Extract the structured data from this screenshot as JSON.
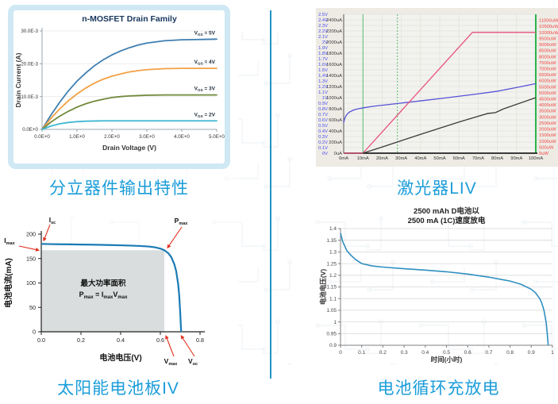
{
  "captions": {
    "mosfet": "分立器件输出特性",
    "liv": "激光器LIV",
    "solar": "太阳能电池板IV",
    "battery": "电池循环充放电"
  },
  "divider": {
    "color": "#2593c4"
  },
  "chart_data": [
    {
      "id": "mosfet",
      "type": "line",
      "title": "n-MOSFET Drain Family",
      "xlabel": "Drain Voltage (V)",
      "ylabel": "Drain Current (A)",
      "xlim": [
        0,
        5
      ],
      "ylim": [
        0,
        0.03
      ],
      "xtick_values": [
        0,
        1,
        2,
        3,
        4,
        5
      ],
      "xtick_labels": [
        "0.0E+0",
        "1.0E+0",
        "2.0E+0",
        "3.0E+0",
        "4.0E+0",
        "5.0E+0"
      ],
      "ytick_values": [
        0,
        0.01,
        0.02,
        0.03
      ],
      "ytick_labels": [
        "0.0E+0",
        "10.0E-3",
        "20.0E-3",
        "30.0E-3"
      ],
      "frame_color": "#cfe8f4",
      "grid": "horizontal",
      "series": [
        {
          "name": "VGS = 5V",
          "label_segs": [
            {
              "t": "V"
            },
            {
              "t": "GS",
              "sub": true
            },
            {
              "t": " = 5V"
            }
          ],
          "color": "#3f7eb0",
          "x": [
            0,
            0.25,
            0.5,
            0.75,
            1,
            1.25,
            1.5,
            1.75,
            2,
            2.25,
            2.5,
            2.75,
            3,
            3.5,
            4,
            4.5,
            5
          ],
          "y": [
            0,
            0.0043,
            0.0082,
            0.0117,
            0.0147,
            0.0172,
            0.0194,
            0.0212,
            0.0227,
            0.0239,
            0.0249,
            0.0257,
            0.0263,
            0.027,
            0.0273,
            0.0274,
            0.0275
          ]
        },
        {
          "name": "VGS = 4V",
          "label_segs": [
            {
              "t": "V"
            },
            {
              "t": "GS",
              "sub": true
            },
            {
              "t": " = 4V"
            }
          ],
          "color": "#f2a144",
          "x": [
            0,
            0.25,
            0.5,
            0.75,
            1,
            1.25,
            1.5,
            1.75,
            2,
            2.25,
            2.5,
            2.75,
            3,
            3.5,
            4,
            4.5,
            5
          ],
          "y": [
            0,
            0.0033,
            0.0062,
            0.0087,
            0.0108,
            0.0126,
            0.0141,
            0.0153,
            0.0162,
            0.0169,
            0.0175,
            0.0179,
            0.0182,
            0.0185,
            0.0186,
            0.0186,
            0.0186
          ]
        },
        {
          "name": "VGS = 3V",
          "label_segs": [
            {
              "t": "V"
            },
            {
              "t": "GS",
              "sub": true
            },
            {
              "t": " = 3V"
            }
          ],
          "color": "#71893b",
          "x": [
            0,
            0.25,
            0.5,
            0.75,
            1,
            1.25,
            1.5,
            1.75,
            2,
            2.25,
            2.5,
            2.75,
            3,
            3.5,
            4,
            4.5,
            5
          ],
          "y": [
            0,
            0.0022,
            0.004,
            0.0055,
            0.0068,
            0.0078,
            0.0086,
            0.0092,
            0.0097,
            0.01,
            0.0102,
            0.0103,
            0.0104,
            0.0105,
            0.0105,
            0.0105,
            0.0105
          ]
        },
        {
          "name": "VGS = 2V",
          "label_segs": [
            {
              "t": "V"
            },
            {
              "t": "GS",
              "sub": true
            },
            {
              "t": " = 2V"
            }
          ],
          "color": "#3fb8d3",
          "x": [
            0,
            0.25,
            0.5,
            0.75,
            1,
            1.25,
            1.5,
            1.75,
            2,
            2.5,
            3,
            3.5,
            4,
            4.5,
            5
          ],
          "y": [
            0,
            0.001,
            0.0017,
            0.0021,
            0.00235,
            0.0025,
            0.00255,
            0.0026,
            0.0026,
            0.0026,
            0.0026,
            0.0026,
            0.0026,
            0.0026,
            0.0026
          ]
        }
      ]
    },
    {
      "id": "liv",
      "type": "line",
      "bg": "#edebe4",
      "plot_bg": "#f2f2ee",
      "grid_color": "#dbdbd5",
      "xlim": [
        0,
        100
      ],
      "xtick_labels": [
        "0mA",
        "10mA",
        "20mA",
        "30mA",
        "40mA",
        "50mA",
        "60mA",
        "70mA",
        "80mA",
        "90mA",
        "100mA"
      ],
      "axes": {
        "voltage": {
          "color": "#4d4df2",
          "max": 2.5,
          "labels": [
            "2.5V",
            "2.4V",
            "2.3V",
            "2.2V",
            "2.1V",
            "2V",
            "1.9V",
            "1.8V",
            "1.7V",
            "1.6V",
            "1.5V",
            "1.4V",
            "1.3V",
            "1.2V",
            "1.1V",
            "1V",
            "0.9V",
            "0.8V",
            "0.7V",
            "0.6V",
            "0.5V",
            "0.4V",
            "0.3V",
            "0.2V",
            "0.1V",
            "0V"
          ],
          "values": [
            2.5,
            2.4,
            2.3,
            2.2,
            2.1,
            2.0,
            1.9,
            1.8,
            1.7,
            1.6,
            1.5,
            1.4,
            1.3,
            1.2,
            1.1,
            1.0,
            0.9,
            0.8,
            0.7,
            0.6,
            0.5,
            0.4,
            0.3,
            0.2,
            0.1,
            0
          ]
        },
        "current": {
          "color": "#3a3a3a",
          "max": 2500,
          "labels": [
            "2400uA",
            "2200uA",
            "2000uA",
            "1800uA",
            "1600uA",
            "1400uA",
            "1200uA",
            "1000uA",
            "800uA",
            "600uA",
            "400uA",
            "200uA",
            "0uA"
          ],
          "values": [
            2400,
            2200,
            2000,
            1800,
            1600,
            1400,
            1200,
            1000,
            800,
            600,
            400,
            200,
            0
          ]
        },
        "power": {
          "color": "#f24646",
          "max": 11500,
          "labels": [
            "11000uW",
            "10500uW",
            "10000uW",
            "9500uW",
            "9000uW",
            "8500uW",
            "8000uW",
            "7500uW",
            "7000uW",
            "6500uW",
            "6000uW",
            "5500uW",
            "5000uW",
            "4500uW",
            "4000uW",
            "3500uW",
            "3000uW",
            "2500uW",
            "2000uW",
            "1500uW",
            "1000uW",
            "500uW",
            "0uW"
          ],
          "values": [
            11000,
            10500,
            10000,
            9500,
            9000,
            8500,
            8000,
            7500,
            7000,
            6500,
            6000,
            5500,
            5000,
            4500,
            4000,
            3500,
            3000,
            2500,
            2000,
            1500,
            1000,
            500,
            0
          ]
        }
      },
      "cursors": {
        "color": "#2eb34e",
        "solid_x": [
          10,
          100
        ],
        "dashed_x": [
          28
        ]
      },
      "series": [
        {
          "name": "voltage",
          "axis": "voltage",
          "color": "#5553d6",
          "x": [
            0,
            0.5,
            1,
            2,
            3,
            5,
            7,
            10,
            15,
            20,
            30,
            40,
            50,
            60,
            70,
            80,
            90,
            100
          ],
          "y": [
            0.55,
            0.62,
            0.66,
            0.71,
            0.74,
            0.775,
            0.795,
            0.815,
            0.843,
            0.863,
            0.902,
            0.942,
            0.982,
            1.025,
            1.068,
            1.115,
            1.182,
            1.252
          ]
        },
        {
          "name": "power",
          "axis": "power",
          "color": "#e8537f",
          "x": [
            0,
            10,
            67,
            100
          ],
          "y": [
            0,
            0,
            10000,
            10000
          ]
        },
        {
          "name": "current",
          "axis": "current",
          "color": "#3a3a3a",
          "x": [
            10,
            20,
            30,
            40,
            50,
            60,
            70,
            75,
            79,
            83,
            100
          ],
          "y": [
            0,
            110,
            225,
            340,
            450,
            560,
            665,
            715,
            730,
            795,
            1000
          ]
        }
      ]
    },
    {
      "id": "solar",
      "type": "line",
      "xlabel": "电池电压(V)",
      "ylabel": "电池电流(mA)",
      "xlim": [
        0,
        0.8
      ],
      "ylim": [
        0,
        200
      ],
      "xtick_values": [
        0,
        0.2,
        0.4,
        0.6,
        0.8
      ],
      "xtick_labels": [
        "0.0",
        "0.2",
        "0.4",
        "0.6",
        "0.8"
      ],
      "ytick_values": [
        0,
        50,
        100,
        150,
        200
      ],
      "ytick_labels": [
        "0",
        "50",
        "100",
        "150",
        "200"
      ],
      "curve": {
        "color": "#1a7ab5",
        "x": [
          0,
          0.05,
          0.1,
          0.15,
          0.2,
          0.25,
          0.3,
          0.35,
          0.4,
          0.45,
          0.5,
          0.54,
          0.57,
          0.6,
          0.62,
          0.64,
          0.655,
          0.67,
          0.68,
          0.69,
          0.695,
          0.7,
          0.705
        ],
        "y": [
          180,
          179.6,
          179.3,
          179,
          178.7,
          178.4,
          178,
          177.6,
          177.1,
          176.5,
          175.7,
          174.7,
          173.3,
          170.5,
          167,
          161,
          153,
          139,
          124,
          97,
          75,
          40,
          0
        ]
      },
      "key_points": {
        "isc": 180,
        "imax": 167,
        "vmax": 0.62,
        "voc": 0.705
      },
      "max_power_area": {
        "fill": "#d9dddd",
        "label_line1": "最大功率面积",
        "formula_segs": [
          {
            "t": "P"
          },
          {
            "t": "max",
            "sub": true
          },
          {
            "t": " = I"
          },
          {
            "t": "max",
            "sub": true
          },
          {
            "t": "V"
          },
          {
            "t": "max",
            "sub": true
          }
        ]
      },
      "arrow_color": "#e0301e",
      "annotations": [
        {
          "id": "isc",
          "segs": [
            {
              "t": "I"
            },
            {
              "t": "sc",
              "sub": true
            }
          ]
        },
        {
          "id": "imax",
          "segs": [
            {
              "t": "I"
            },
            {
              "t": "max",
              "sub": true
            }
          ]
        },
        {
          "id": "pmax",
          "segs": [
            {
              "t": "P"
            },
            {
              "t": "max",
              "sub": true
            }
          ]
        },
        {
          "id": "vmax",
          "segs": [
            {
              "t": "V"
            },
            {
              "t": "max",
              "sub": true
            }
          ]
        },
        {
          "id": "voc",
          "segs": [
            {
              "t": "V"
            },
            {
              "t": "oc",
              "sub": true
            }
          ]
        }
      ]
    },
    {
      "id": "battery",
      "type": "line",
      "title_lines": [
        "2500 mAh D电池以",
        "2500 mA (1C)速度放电"
      ],
      "xlabel": "时间(小时)",
      "ylabel": "电池电压(V)",
      "xlim": [
        0,
        1
      ],
      "ylim": [
        0.9,
        1.4
      ],
      "xtick_values": [
        0,
        0.1,
        0.2,
        0.3,
        0.4,
        0.5,
        0.6,
        0.7,
        0.8,
        0.9,
        1
      ],
      "xtick_labels": [
        "0",
        "0.1",
        "0.2",
        "0.3",
        "0.4",
        "0.5",
        "0.6",
        "0.7",
        "0.8",
        "0.9",
        "1"
      ],
      "ytick_values": [
        1.4,
        1.35,
        1.3,
        1.25,
        1.2,
        1.15,
        1.1,
        1.05,
        1,
        0.95,
        0.9
      ],
      "ytick_labels": [
        "1.4",
        "1.35",
        "1.3",
        "1.25",
        "1.2",
        "1.15",
        "1.1",
        "1.05",
        "1",
        "0.95",
        "0.9"
      ],
      "grid_color": "#d9d9d9",
      "curve": {
        "color": "#2e8fc0",
        "x": [
          0,
          0.01,
          0.03,
          0.05,
          0.07,
          0.1,
          0.15,
          0.2,
          0.3,
          0.4,
          0.5,
          0.6,
          0.7,
          0.8,
          0.85,
          0.9,
          0.92,
          0.94,
          0.95,
          0.96,
          0.97,
          0.975,
          0.98
        ],
        "y": [
          1.38,
          1.345,
          1.305,
          1.285,
          1.268,
          1.25,
          1.24,
          1.235,
          1.228,
          1.222,
          1.215,
          1.205,
          1.192,
          1.175,
          1.162,
          1.14,
          1.125,
          1.1,
          1.08,
          1.05,
          1.0,
          0.955,
          0.9
        ]
      }
    }
  ]
}
